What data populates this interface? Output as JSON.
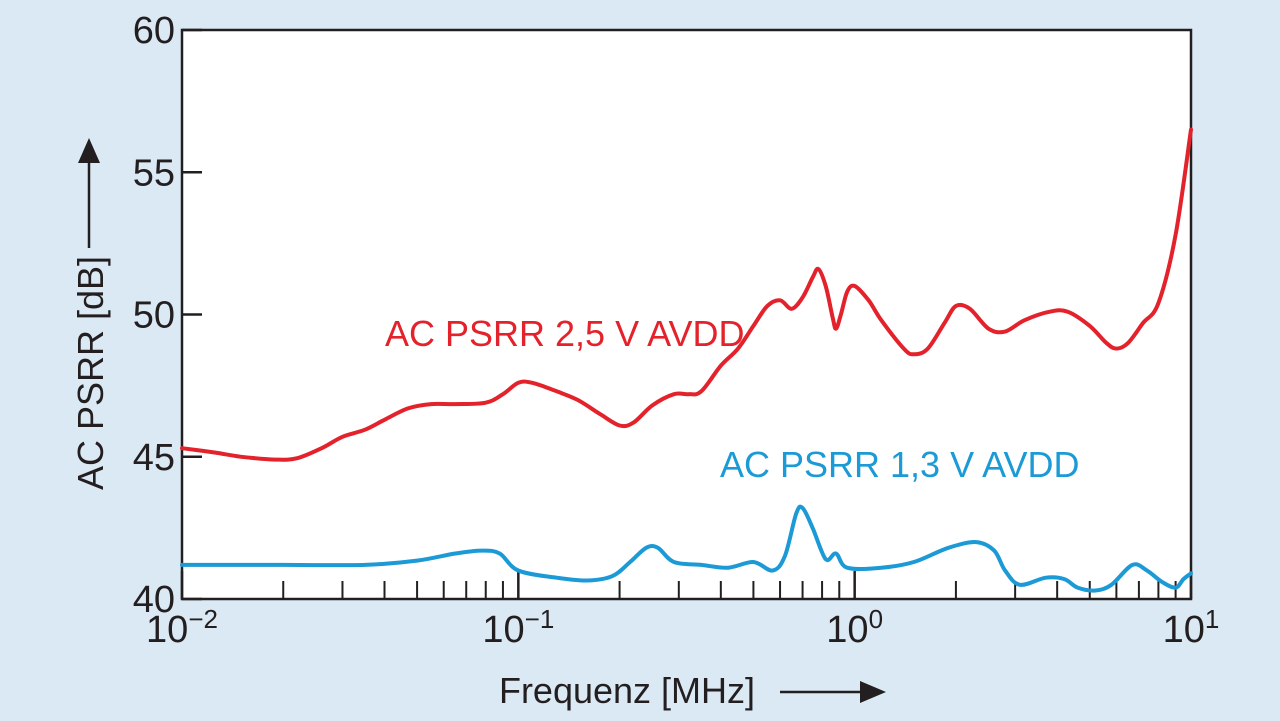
{
  "chart_data": {
    "type": "line",
    "xlabel": "Frequenz [MHz]",
    "ylabel": "AC PSRR [dB]",
    "xscale": "log",
    "xlim": [
      0.01,
      10
    ],
    "ylim": [
      40,
      60
    ],
    "x_ticks": [
      {
        "base": "10",
        "exp": "−2",
        "value": 0.01
      },
      {
        "base": "10",
        "exp": "−1",
        "value": 0.1
      },
      {
        "base": "10",
        "exp": "0",
        "value": 1
      },
      {
        "base": "10",
        "exp": "1",
        "value": 10
      }
    ],
    "y_ticks": [
      "40",
      "45",
      "50",
      "55",
      "60"
    ],
    "grid": false,
    "series": [
      {
        "name": "AC PSRR 2,5 V AVDD",
        "color": "#e3222b",
        "points": [
          [
            0.01,
            45.3
          ],
          [
            0.0125,
            45.15
          ],
          [
            0.015,
            45.0
          ],
          [
            0.019,
            44.9
          ],
          [
            0.022,
            44.95
          ],
          [
            0.026,
            45.3
          ],
          [
            0.03,
            45.7
          ],
          [
            0.035,
            45.95
          ],
          [
            0.04,
            46.3
          ],
          [
            0.047,
            46.7
          ],
          [
            0.055,
            46.85
          ],
          [
            0.065,
            46.85
          ],
          [
            0.08,
            46.9
          ],
          [
            0.09,
            47.2
          ],
          [
            0.1,
            47.6
          ],
          [
            0.11,
            47.6
          ],
          [
            0.13,
            47.3
          ],
          [
            0.15,
            47.0
          ],
          [
            0.175,
            46.5
          ],
          [
            0.2,
            46.1
          ],
          [
            0.22,
            46.2
          ],
          [
            0.25,
            46.8
          ],
          [
            0.29,
            47.2
          ],
          [
            0.32,
            47.2
          ],
          [
            0.35,
            47.3
          ],
          [
            0.4,
            48.2
          ],
          [
            0.45,
            48.8
          ],
          [
            0.5,
            49.6
          ],
          [
            0.55,
            50.3
          ],
          [
            0.6,
            50.5
          ],
          [
            0.65,
            50.2
          ],
          [
            0.7,
            50.6
          ],
          [
            0.75,
            51.3
          ],
          [
            0.78,
            51.6
          ],
          [
            0.82,
            51.0
          ],
          [
            0.86,
            49.9
          ],
          [
            0.88,
            49.5
          ],
          [
            0.91,
            50.0
          ],
          [
            0.95,
            50.8
          ],
          [
            1.0,
            51.0
          ],
          [
            1.1,
            50.5
          ],
          [
            1.2,
            49.8
          ],
          [
            1.4,
            48.8
          ],
          [
            1.5,
            48.6
          ],
          [
            1.65,
            48.8
          ],
          [
            1.85,
            49.7
          ],
          [
            2.0,
            50.3
          ],
          [
            2.2,
            50.2
          ],
          [
            2.5,
            49.5
          ],
          [
            2.8,
            49.4
          ],
          [
            3.2,
            49.8
          ],
          [
            3.8,
            50.1
          ],
          [
            4.3,
            50.1
          ],
          [
            5.0,
            49.6
          ],
          [
            5.6,
            49.0
          ],
          [
            6.0,
            48.8
          ],
          [
            6.5,
            49.0
          ],
          [
            7.2,
            49.7
          ],
          [
            8.0,
            50.4
          ],
          [
            9.0,
            52.8
          ],
          [
            10.0,
            56.5
          ]
        ]
      },
      {
        "name": "AC PSRR 1,3 V AVDD",
        "color": "#1c9ad6",
        "points": [
          [
            0.01,
            41.2
          ],
          [
            0.02,
            41.2
          ],
          [
            0.035,
            41.2
          ],
          [
            0.05,
            41.35
          ],
          [
            0.065,
            41.6
          ],
          [
            0.078,
            41.7
          ],
          [
            0.088,
            41.6
          ],
          [
            0.1,
            41.0
          ],
          [
            0.13,
            40.75
          ],
          [
            0.16,
            40.65
          ],
          [
            0.19,
            40.8
          ],
          [
            0.215,
            41.3
          ],
          [
            0.24,
            41.8
          ],
          [
            0.26,
            41.8
          ],
          [
            0.29,
            41.3
          ],
          [
            0.35,
            41.2
          ],
          [
            0.42,
            41.1
          ],
          [
            0.5,
            41.3
          ],
          [
            0.57,
            41.0
          ],
          [
            0.62,
            41.5
          ],
          [
            0.67,
            43.0
          ],
          [
            0.7,
            43.2
          ],
          [
            0.75,
            42.5
          ],
          [
            0.82,
            41.4
          ],
          [
            0.88,
            41.6
          ],
          [
            0.95,
            41.1
          ],
          [
            1.2,
            41.1
          ],
          [
            1.5,
            41.3
          ],
          [
            1.9,
            41.8
          ],
          [
            2.3,
            42.0
          ],
          [
            2.6,
            41.7
          ],
          [
            2.8,
            41.0
          ],
          [
            3.1,
            40.5
          ],
          [
            3.7,
            40.75
          ],
          [
            4.2,
            40.7
          ],
          [
            4.6,
            40.4
          ],
          [
            5.2,
            40.3
          ],
          [
            5.8,
            40.5
          ],
          [
            6.7,
            41.2
          ],
          [
            7.4,
            41.0
          ],
          [
            8.2,
            40.6
          ],
          [
            9.0,
            40.4
          ],
          [
            9.5,
            40.7
          ],
          [
            10.0,
            40.9
          ]
        ]
      }
    ]
  }
}
